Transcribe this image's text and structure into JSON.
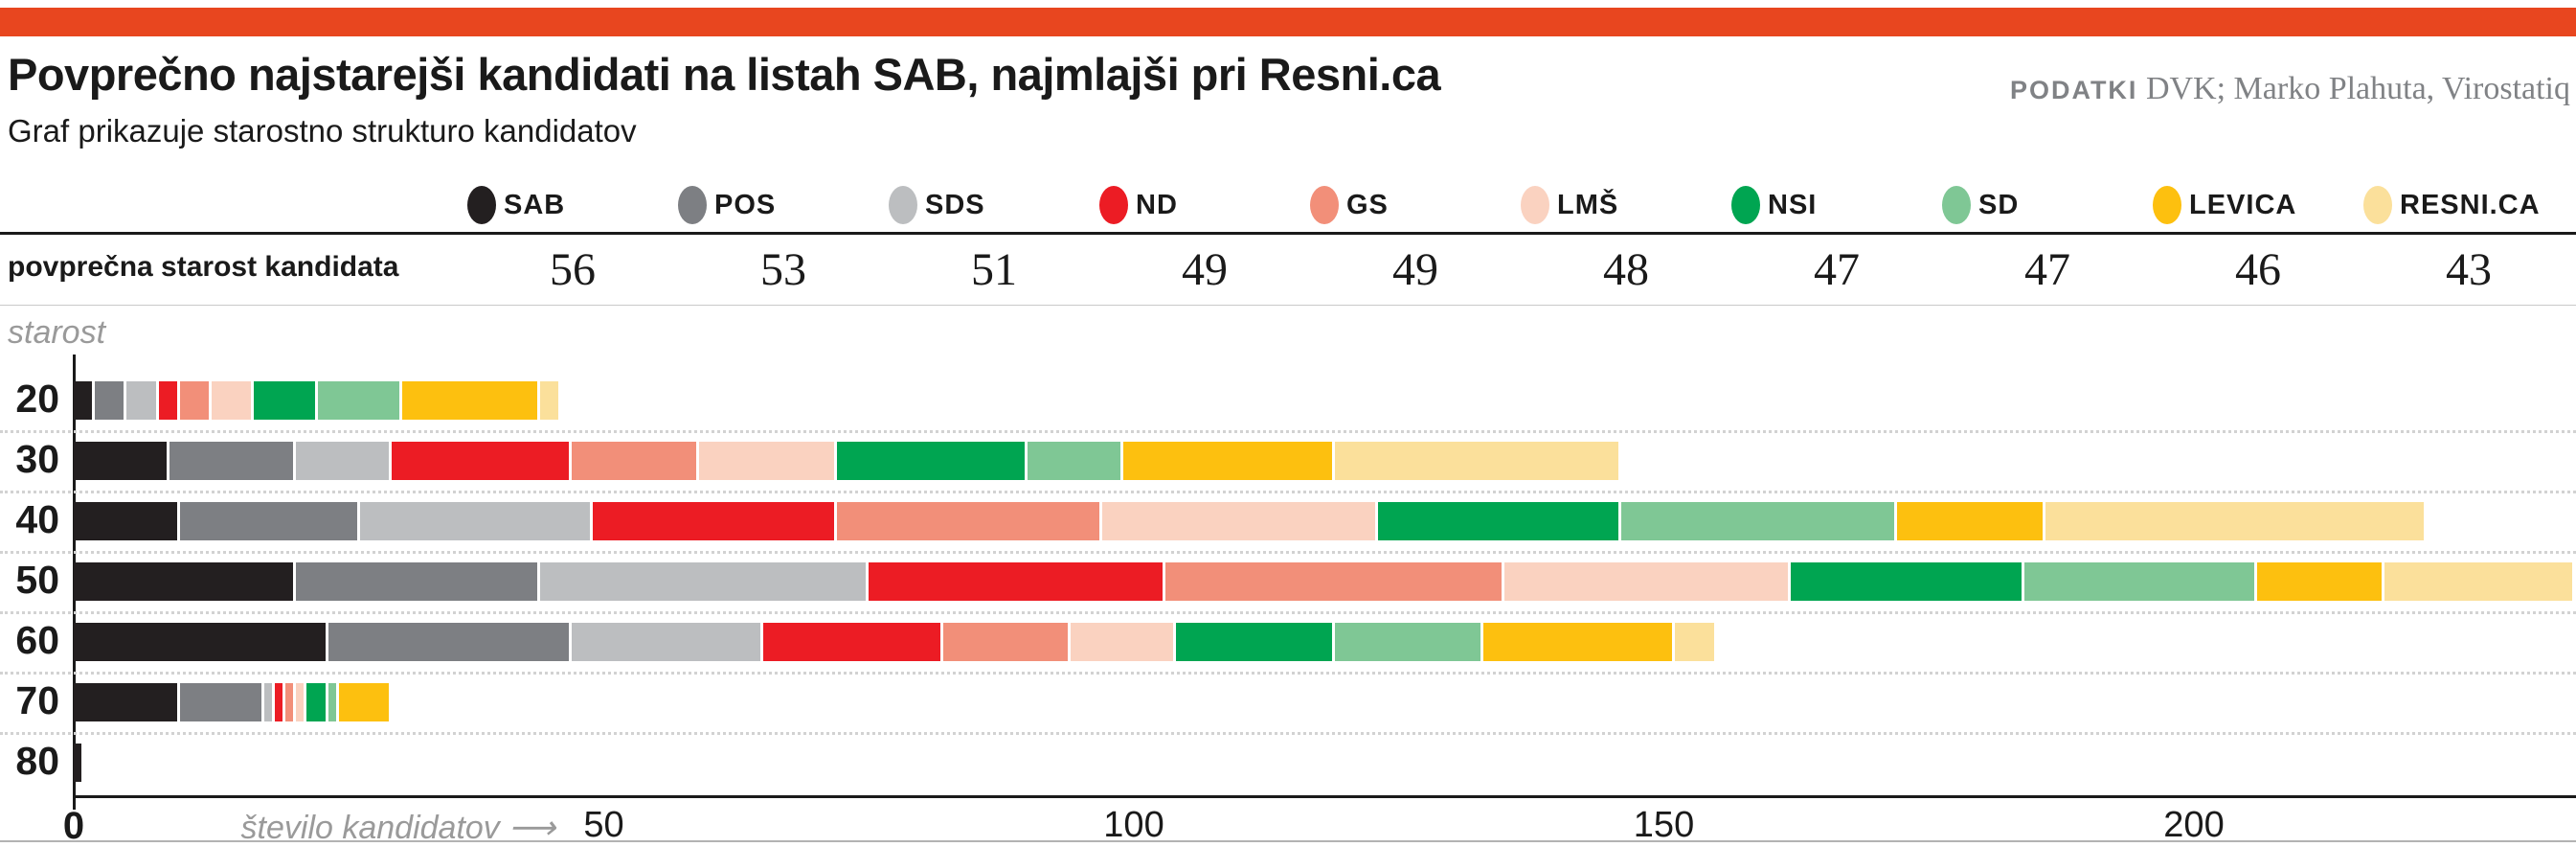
{
  "header": {
    "title": "Povprečno najstarejši kandidati na listah SAB, najmlajši pri Resni.ca",
    "subtitle": "Graf prikazuje starostno strukturo kandidatov",
    "source_label": "PODATKI",
    "source_text": " DVK; Marko Plahuta, Virostatiq"
  },
  "colors": {
    "accent": "#e8461f",
    "axis": "#1a1a1a",
    "muted_text": "#9a9a9a",
    "source_text": "#808285",
    "separator": "#d2d2d2"
  },
  "avg_row": {
    "label": "povprečna starost kandidata"
  },
  "chart_data": {
    "type": "bar",
    "stacked": true,
    "horizontal": true,
    "title": "Povprečno najstarejši kandidati na listah SAB, najmlajši pri Resni.ca",
    "subtitle": "Graf prikazuje starostno strukturo kandidatov",
    "ylabel": "starost",
    "xlabel": "število kandidatov",
    "xlabel_display": "število kandidatov ⟶",
    "x_ticks": [
      0,
      50,
      100,
      150,
      200
    ],
    "xlim": [
      0,
      236
    ],
    "grid": "dotted row separators",
    "legend_position": "top",
    "categories": [
      "20",
      "30",
      "40",
      "50",
      "60",
      "70",
      "80"
    ],
    "series": [
      {
        "name": "SAB",
        "color": "#231f20",
        "avg_age": 56,
        "values": [
          2,
          9,
          10,
          21,
          24,
          10,
          1
        ]
      },
      {
        "name": "POS",
        "color": "#7d7f83",
        "avg_age": 53,
        "values": [
          3,
          12,
          17,
          23,
          23,
          8,
          0
        ]
      },
      {
        "name": "SDS",
        "color": "#bcbec0",
        "avg_age": 51,
        "values": [
          3,
          9,
          22,
          31,
          18,
          1,
          0
        ]
      },
      {
        "name": "ND",
        "color": "#ec1c24",
        "avg_age": 49,
        "values": [
          2,
          17,
          23,
          28,
          17,
          1,
          0
        ]
      },
      {
        "name": "GS",
        "color": "#f28f79",
        "avg_age": 49,
        "values": [
          3,
          12,
          25,
          32,
          12,
          1,
          0
        ]
      },
      {
        "name": "LMŠ",
        "color": "#fad2c0",
        "avg_age": 48,
        "values": [
          4,
          13,
          26,
          27,
          10,
          1,
          0
        ]
      },
      {
        "name": "NSI",
        "color": "#00a551",
        "avg_age": 47,
        "values": [
          6,
          18,
          23,
          22,
          15,
          2,
          0
        ]
      },
      {
        "name": "SD",
        "color": "#7fc795",
        "avg_age": 47,
        "values": [
          8,
          9,
          26,
          22,
          14,
          1,
          0
        ]
      },
      {
        "name": "LEVICA",
        "color": "#fdc00f",
        "avg_age": 46,
        "values": [
          13,
          20,
          14,
          12,
          18,
          5,
          0
        ]
      },
      {
        "name": "RESNI.CA",
        "color": "#fbe09b",
        "avg_age": 43,
        "values": [
          2,
          27,
          36,
          18,
          4,
          0,
          0
        ]
      }
    ]
  }
}
